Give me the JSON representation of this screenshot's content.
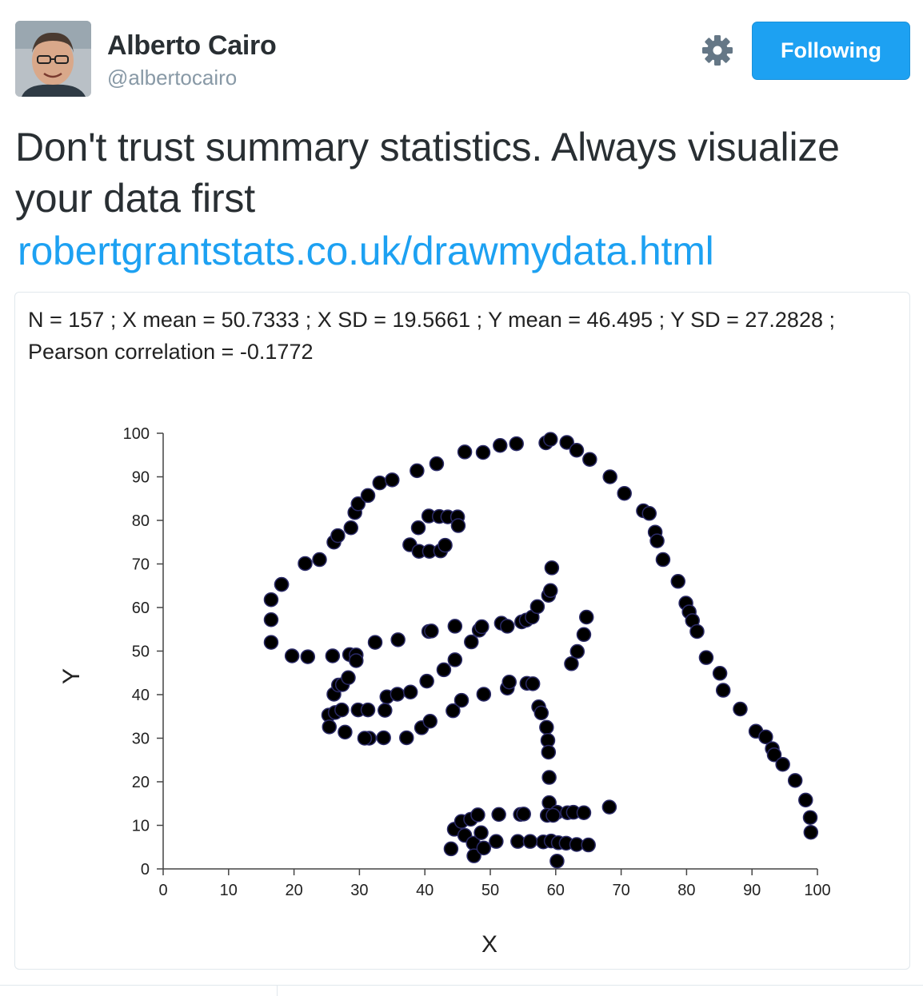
{
  "author": {
    "name": "Alberto Cairo",
    "handle": "@albertocairo"
  },
  "actions": {
    "follow_label": "Following",
    "settings_icon": "gear-icon"
  },
  "tweet": {
    "text": "Don't trust summary statistics. Always visualize your data first",
    "link": "robertgrantstats.co.uk/drawmydata.html"
  },
  "card": {
    "stats_line1": "N = 157 ; X mean = 50.7333 ; X SD = 19.5661 ; Y mean = 46.495 ; Y SD = 27.2828 ;",
    "stats_line2": "Pearson correlation = -0.1772"
  },
  "colors": {
    "accent": "#1da1f2",
    "point_fill": "#000000",
    "point_stroke": "#2a2a66",
    "text": "#292f33",
    "muted": "#8899a6"
  },
  "chart_data": {
    "type": "scatter",
    "xlabel": "X",
    "ylabel": "Y",
    "xlim": [
      0,
      100
    ],
    "ylim": [
      0,
      100
    ],
    "xticks": [
      0,
      10,
      20,
      30,
      40,
      50,
      60,
      70,
      80,
      90,
      100
    ],
    "yticks": [
      0,
      10,
      20,
      30,
      40,
      50,
      60,
      70,
      80,
      90,
      100
    ],
    "grid": false,
    "points": [
      [
        55.4,
        97.2
      ],
      [
        51.5,
        96.0
      ],
      [
        46.2,
        94.5
      ],
      [
        42.8,
        91.4
      ],
      [
        40.8,
        88.3
      ],
      [
        38.7,
        84.9
      ],
      [
        35.6,
        79.9
      ],
      [
        33.1,
        77.6
      ],
      [
        29.0,
        74.5
      ],
      [
        26.2,
        71.4
      ],
      [
        20.8,
        67.8
      ],
      [
        18.2,
        64.7
      ],
      [
        14.3,
        61.8
      ],
      [
        12.8,
        58.7
      ],
      [
        12.3,
        55.1
      ],
      [
        11.3,
        52.0
      ],
      [
        11.0,
        48.8
      ],
      [
        12.3,
        45.4
      ],
      [
        15.3,
        42.4
      ],
      [
        17.3,
        40.1
      ],
      [
        20.5,
        36.9
      ],
      [
        23.1,
        33.6
      ],
      [
        25.3,
        31.2
      ],
      [
        28.4,
        29.2
      ],
      [
        31.4,
        27.4
      ],
      [
        34.1,
        25.7
      ],
      [
        37.1,
        23.9
      ],
      [
        40.0,
        20.6
      ],
      [
        42.8,
        18.8
      ],
      [
        46.2,
        16.6
      ],
      [
        49.5,
        14.3
      ],
      [
        53.8,
        12.6
      ],
      [
        58.6,
        10.4
      ],
      [
        62.0,
        8.9
      ],
      [
        66.9,
        7.7
      ],
      [
        70.5,
        6.6
      ],
      [
        16.4,
        75.0
      ],
      [
        17.4,
        72.0
      ],
      [
        20.5,
        70.0
      ],
      [
        21.8,
        66.0
      ],
      [
        26.4,
        60.0
      ],
      [
        28.1,
        56.0
      ],
      [
        30.8,
        53.2
      ],
      [
        30.8,
        49.9
      ],
      [
        32.3,
        81.9
      ],
      [
        34.0,
        79.0
      ]
    ],
    "dino_points": [
      [
        16.5,
        52.0
      ],
      [
        16.5,
        57.2
      ],
      [
        16.5,
        61.8
      ],
      [
        18.1,
        65.3
      ],
      [
        21.7,
        70.1
      ],
      [
        23.9,
        71.0
      ],
      [
        26.1,
        75.0
      ],
      [
        26.7,
        76.5
      ],
      [
        28.7,
        78.3
      ],
      [
        29.3,
        81.8
      ],
      [
        29.8,
        83.8
      ],
      [
        31.3,
        85.7
      ],
      [
        33.1,
        88.6
      ],
      [
        35.0,
        89.3
      ],
      [
        38.8,
        91.4
      ],
      [
        41.8,
        93.0
      ],
      [
        46.1,
        95.7
      ],
      [
        48.9,
        95.6
      ],
      [
        51.5,
        97.2
      ],
      [
        54.0,
        97.6
      ],
      [
        58.5,
        97.8
      ],
      [
        59.2,
        98.6
      ],
      [
        61.7,
        97.9
      ],
      [
        63.2,
        96.1
      ],
      [
        65.2,
        94.0
      ],
      [
        68.3,
        90.0
      ],
      [
        70.5,
        86.2
      ],
      [
        73.4,
        82.2
      ],
      [
        74.3,
        81.6
      ],
      [
        75.2,
        77.3
      ],
      [
        75.5,
        75.3
      ],
      [
        76.4,
        71.0
      ],
      [
        78.7,
        66.0
      ],
      [
        79.9,
        61.0
      ],
      [
        80.4,
        59.0
      ],
      [
        80.9,
        57.0
      ],
      [
        81.6,
        54.5
      ],
      [
        83.0,
        48.5
      ],
      [
        85.1,
        44.9
      ],
      [
        85.6,
        41.0
      ],
      [
        88.2,
        36.7
      ],
      [
        90.6,
        31.6
      ],
      [
        92.1,
        30.3
      ],
      [
        93.1,
        27.6
      ],
      [
        93.4,
        26.2
      ],
      [
        94.7,
        24.0
      ],
      [
        96.6,
        20.3
      ],
      [
        98.2,
        15.8
      ],
      [
        98.9,
        11.8
      ],
      [
        99.0,
        8.4
      ],
      [
        18.1,
        65.3
      ],
      [
        19.7,
        48.9
      ],
      [
        22.1,
        48.7
      ],
      [
        25.9,
        48.9
      ],
      [
        28.5,
        49.2
      ],
      [
        29.5,
        49.1
      ],
      [
        29.5,
        47.8
      ],
      [
        32.4,
        52.0
      ],
      [
        35.9,
        52.6
      ],
      [
        40.6,
        54.5
      ],
      [
        41.0,
        54.6
      ],
      [
        44.6,
        55.7
      ],
      [
        47.1,
        52.1
      ],
      [
        48.3,
        54.8
      ],
      [
        48.7,
        55.6
      ],
      [
        51.7,
        56.4
      ],
      [
        52.6,
        55.7
      ],
      [
        54.8,
        56.7
      ],
      [
        55.5,
        57.1
      ],
      [
        56.4,
        57.8
      ],
      [
        57.2,
        60.2
      ],
      [
        58.9,
        62.8
      ],
      [
        59.2,
        63.9
      ],
      [
        59.4,
        69.1
      ],
      [
        25.3,
        35.3
      ],
      [
        25.4,
        32.6
      ],
      [
        26.3,
        35.9
      ],
      [
        27.3,
        36.5
      ],
      [
        27.8,
        31.4
      ],
      [
        29.8,
        36.5
      ],
      [
        31.3,
        36.5
      ],
      [
        31.5,
        30.0
      ],
      [
        33.7,
        30.1
      ],
      [
        33.9,
        36.4
      ],
      [
        34.2,
        39.5
      ],
      [
        35.8,
        40.1
      ],
      [
        37.2,
        30.1
      ],
      [
        37.8,
        40.6
      ],
      [
        39.5,
        32.4
      ],
      [
        40.3,
        43.1
      ],
      [
        40.8,
        33.9
      ],
      [
        42.9,
        45.7
      ],
      [
        44.3,
        36.3
      ],
      [
        44.6,
        48.0
      ],
      [
        45.6,
        38.7
      ],
      [
        49.0,
        40.1
      ],
      [
        52.6,
        41.5
      ],
      [
        52.9,
        42.9
      ],
      [
        55.6,
        42.6
      ],
      [
        56.5,
        42.5
      ],
      [
        57.4,
        37.2
      ],
      [
        57.8,
        35.8
      ],
      [
        58.6,
        32.5
      ],
      [
        58.8,
        29.5
      ],
      [
        58.9,
        26.8
      ],
      [
        59.0,
        21.0
      ],
      [
        59.0,
        15.2
      ],
      [
        58.7,
        12.3
      ],
      [
        58.1,
        6.2
      ],
      [
        59.3,
        6.4
      ],
      [
        60.4,
        6.0
      ],
      [
        60.2,
        13.0
      ],
      [
        60.2,
        1.8
      ],
      [
        61.6,
        5.9
      ],
      [
        61.8,
        12.9
      ],
      [
        62.7,
        13.0
      ],
      [
        62.4,
        47.1
      ],
      [
        63.2,
        5.6
      ],
      [
        63.3,
        49.9
      ],
      [
        64.3,
        53.8
      ],
      [
        64.7,
        57.8
      ],
      [
        64.3,
        12.9
      ],
      [
        65.0,
        5.5
      ],
      [
        68.2,
        14.2
      ],
      [
        26.1,
        40.1
      ],
      [
        26.8,
        42.2
      ],
      [
        27.4,
        42.3
      ],
      [
        28.3,
        43.9
      ],
      [
        30.8,
        30.0
      ],
      [
        39.0,
        78.3
      ],
      [
        40.6,
        81.0
      ],
      [
        42.2,
        80.9
      ],
      [
        43.5,
        80.8
      ],
      [
        45.0,
        80.8
      ],
      [
        45.1,
        78.8
      ],
      [
        37.7,
        74.4
      ],
      [
        39.1,
        72.9
      ],
      [
        40.7,
        72.9
      ],
      [
        42.4,
        73.0
      ],
      [
        43.1,
        74.3
      ],
      [
        44.0,
        4.6
      ],
      [
        44.5,
        9.1
      ],
      [
        45.6,
        10.9
      ],
      [
        46.1,
        7.7
      ],
      [
        47.0,
        11.4
      ],
      [
        47.4,
        5.9
      ],
      [
        47.5,
        3.0
      ],
      [
        48.1,
        12.4
      ],
      [
        48.6,
        8.3
      ],
      [
        49.0,
        4.8
      ],
      [
        50.9,
        6.3
      ],
      [
        51.3,
        12.5
      ],
      [
        54.2,
        6.3
      ],
      [
        54.6,
        12.5
      ],
      [
        55.1,
        12.6
      ],
      [
        56.1,
        6.3
      ],
      [
        59.6,
        12.3
      ]
    ]
  }
}
